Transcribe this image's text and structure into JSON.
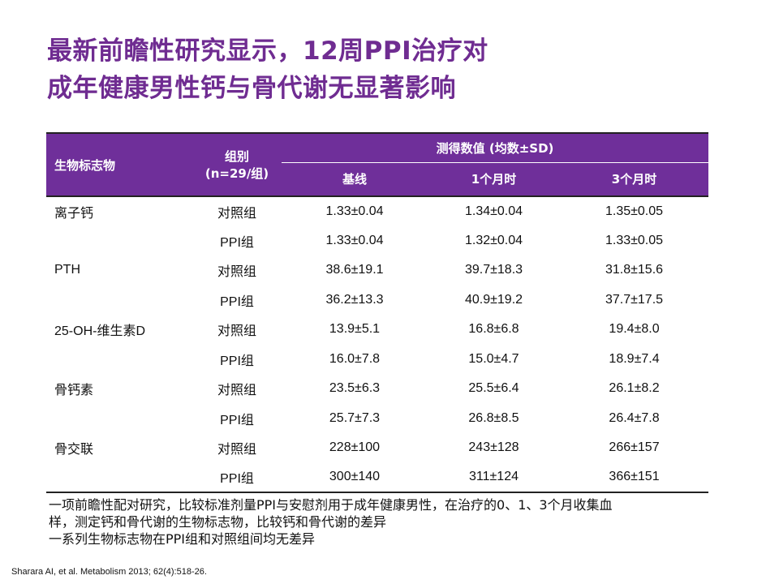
{
  "slide": {
    "title_line1": "最新前瞻性研究显示，12周PPI治疗对",
    "title_line2": "成年健康男性钙与骨代谢无显著影响",
    "accent_color": "#6f2f9a"
  },
  "table": {
    "headers": {
      "marker": "生物标志物",
      "group_line1": "组别",
      "group_line2": "(n=29/组)",
      "measured": "测得数值 (均数±SD)",
      "baseline": "基线",
      "month1": "1个月时",
      "month3": "3个月时"
    },
    "rows": [
      {
        "marker": "离子钙",
        "group": "对照组",
        "baseline": "1.33±0.04",
        "month1": "1.34±0.04",
        "month3": "1.35±0.05"
      },
      {
        "marker": "",
        "group": "PPI组",
        "baseline": "1.33±0.04",
        "month1": "1.32±0.04",
        "month3": "1.33±0.05"
      },
      {
        "marker": "PTH",
        "group": "对照组",
        "baseline": "38.6±19.1",
        "month1": "39.7±18.3",
        "month3": "31.8±15.6"
      },
      {
        "marker": "",
        "group": "PPI组",
        "baseline": "36.2±13.3",
        "month1": "40.9±19.2",
        "month3": "37.7±17.5"
      },
      {
        "marker": "25-OH-维生素D",
        "group": "对照组",
        "baseline": "13.9±5.1",
        "month1": "16.8±6.8",
        "month3": "19.4±8.0"
      },
      {
        "marker": "",
        "group": "PPI组",
        "baseline": "16.0±7.8",
        "month1": "15.0±4.7",
        "month3": "18.9±7.4"
      },
      {
        "marker": "骨钙素",
        "group": "对照组",
        "baseline": "23.5±6.3",
        "month1": "25.5±6.4",
        "month3": "26.1±8.2"
      },
      {
        "marker": "",
        "group": "PPI组",
        "baseline": "25.7±7.3",
        "month1": "26.8±8.5",
        "month3": "26.4±7.8"
      },
      {
        "marker": "骨交联",
        "group": "对照组",
        "baseline": "228±100",
        "month1": "243±128",
        "month3": "266±157"
      },
      {
        "marker": "",
        "group": "PPI组",
        "baseline": "300±140",
        "month1": "311±124",
        "month3": "366±151"
      }
    ]
  },
  "notes": {
    "line1": "一项前瞻性配对研究，比较标准剂量PPI与安慰剂用于成年健康男性，在治疗的0、1、3个月收集血",
    "line2": "样，测定钙和骨代谢的生物标志物，比较钙和骨代谢的差异",
    "line3": "一系列生物标志物在PPI组和对照组间均无差异"
  },
  "citation": "Sharara AI, et al. Metabolism 2013; 62(4):518-26."
}
